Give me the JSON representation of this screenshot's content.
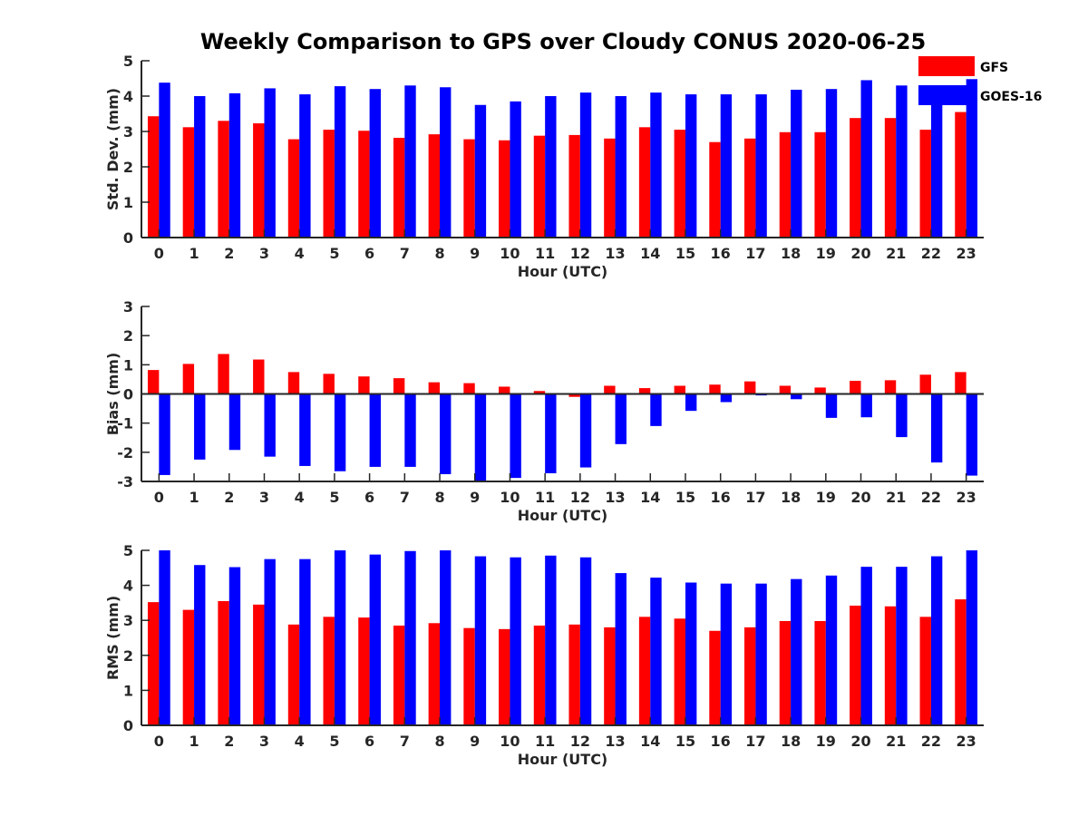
{
  "title": "Weekly Comparison to GPS over Cloudy CONUS 2020-06-25",
  "colors": {
    "GFS": "#ff0000",
    "GOES-16": "#0000ff",
    "axis": "#262626"
  },
  "legend": {
    "placement": "top-right",
    "entries": [
      "GFS",
      "GOES-16"
    ]
  },
  "chart_data": [
    {
      "type": "bar",
      "xlabel": "Hour (UTC)",
      "ylabel": "Std. Dev. (mm)",
      "ylim": [
        0,
        5
      ],
      "yticks": [
        0,
        1,
        2,
        3,
        4,
        5
      ],
      "grid": false,
      "categories": [
        "0",
        "1",
        "2",
        "3",
        "4",
        "5",
        "6",
        "7",
        "8",
        "9",
        "10",
        "11",
        "12",
        "13",
        "14",
        "15",
        "16",
        "17",
        "18",
        "19",
        "20",
        "21",
        "22",
        "23"
      ],
      "series": [
        {
          "name": "GFS",
          "values": [
            3.43,
            3.12,
            3.3,
            3.23,
            2.78,
            3.05,
            3.02,
            2.82,
            2.92,
            2.78,
            2.75,
            2.88,
            2.9,
            2.8,
            3.12,
            3.05,
            2.7,
            2.8,
            2.98,
            2.98,
            3.38,
            3.38,
            3.05,
            3.55
          ]
        },
        {
          "name": "GOES-16",
          "values": [
            4.38,
            4.0,
            4.08,
            4.22,
            4.05,
            4.28,
            4.2,
            4.3,
            4.25,
            3.75,
            3.85,
            4.0,
            4.1,
            4.0,
            4.1,
            4.05,
            4.05,
            4.05,
            4.18,
            4.2,
            4.45,
            4.3,
            4.2,
            4.48
          ]
        }
      ]
    },
    {
      "type": "bar",
      "xlabel": "Hour (UTC)",
      "ylabel": "Bias (mm)",
      "ylim": [
        -3,
        3
      ],
      "yticks": [
        -3,
        -2,
        -1,
        0,
        1,
        2,
        3
      ],
      "grid": false,
      "categories": [
        "0",
        "1",
        "2",
        "3",
        "4",
        "5",
        "6",
        "7",
        "8",
        "9",
        "10",
        "11",
        "12",
        "13",
        "14",
        "15",
        "16",
        "17",
        "18",
        "19",
        "20",
        "21",
        "22",
        "23"
      ],
      "series": [
        {
          "name": "GFS",
          "values": [
            0.82,
            1.03,
            1.37,
            1.18,
            0.75,
            0.69,
            0.6,
            0.54,
            0.4,
            0.37,
            0.25,
            0.1,
            -0.1,
            0.28,
            0.2,
            0.28,
            0.32,
            0.43,
            0.28,
            0.22,
            0.45,
            0.47,
            0.66,
            0.75
          ]
        },
        {
          "name": "GOES-16",
          "values": [
            -2.78,
            -2.25,
            -1.92,
            -2.15,
            -2.47,
            -2.65,
            -2.5,
            -2.5,
            -2.75,
            -3.0,
            -2.88,
            -2.72,
            -2.52,
            -1.72,
            -1.1,
            -0.58,
            -0.28,
            -0.05,
            -0.18,
            -0.82,
            -0.8,
            -1.48,
            -2.35,
            -2.8
          ]
        }
      ]
    },
    {
      "type": "bar",
      "xlabel": "Hour (UTC)",
      "ylabel": "RMS (mm)",
      "ylim": [
        0,
        5
      ],
      "yticks": [
        0,
        1,
        2,
        3,
        4,
        5
      ],
      "grid": false,
      "categories": [
        "0",
        "1",
        "2",
        "3",
        "4",
        "5",
        "6",
        "7",
        "8",
        "9",
        "10",
        "11",
        "12",
        "13",
        "14",
        "15",
        "16",
        "17",
        "18",
        "19",
        "20",
        "21",
        "22",
        "23"
      ],
      "series": [
        {
          "name": "GFS",
          "values": [
            3.52,
            3.3,
            3.55,
            3.45,
            2.88,
            3.1,
            3.08,
            2.85,
            2.92,
            2.78,
            2.75,
            2.85,
            2.88,
            2.8,
            3.1,
            3.05,
            2.7,
            2.8,
            2.98,
            2.98,
            3.42,
            3.4,
            3.1,
            3.6
          ]
        },
        {
          "name": "GOES-16",
          "values": [
            5.0,
            4.58,
            4.52,
            4.75,
            4.75,
            5.0,
            4.88,
            4.98,
            5.0,
            4.83,
            4.8,
            4.85,
            4.8,
            4.35,
            4.22,
            4.08,
            4.05,
            4.05,
            4.18,
            4.28,
            4.53,
            4.53,
            4.83,
            5.0
          ]
        }
      ]
    }
  ]
}
